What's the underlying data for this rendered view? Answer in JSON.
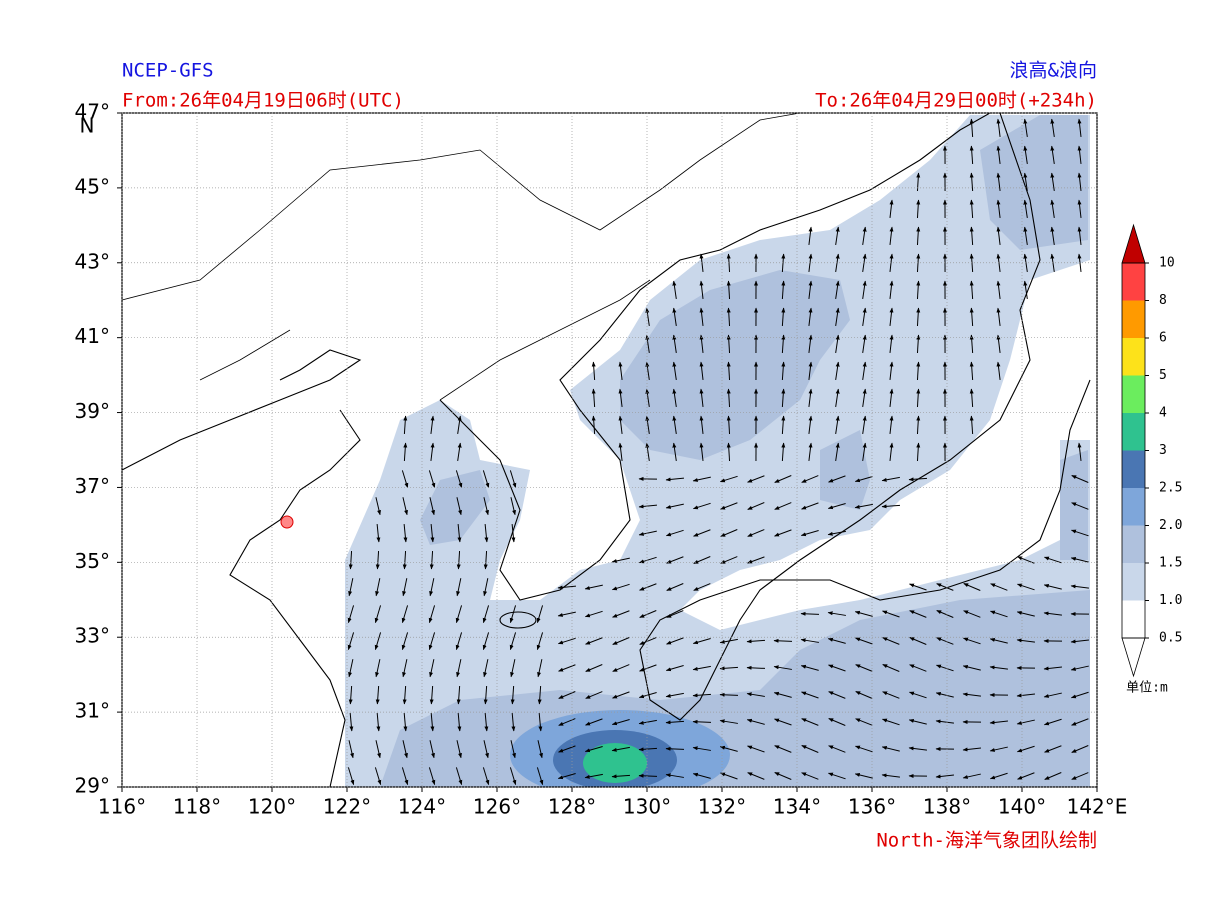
{
  "header": {
    "source": "NCEP-GFS",
    "product": "浪高&浪向",
    "from": "From:26年04月19日06时(UTC)",
    "to": "To:26年04月29日00时(+234h)"
  },
  "footer": {
    "credit": "North-海洋气象团队绘制"
  },
  "map": {
    "xlim": [
      116,
      142
    ],
    "ylim": [
      29,
      47
    ],
    "xticks": [
      {
        "value": 116,
        "label": "116°"
      },
      {
        "value": 118,
        "label": "118°"
      },
      {
        "value": 120,
        "label": "120°"
      },
      {
        "value": 122,
        "label": "122°"
      },
      {
        "value": 124,
        "label": "124°"
      },
      {
        "value": 126,
        "label": "126°"
      },
      {
        "value": 128,
        "label": "128°"
      },
      {
        "value": 130,
        "label": "130°"
      },
      {
        "value": 132,
        "label": "132°"
      },
      {
        "value": 134,
        "label": "134°"
      },
      {
        "value": 136,
        "label": "136°"
      },
      {
        "value": 138,
        "label": "138°"
      },
      {
        "value": 140,
        "label": "140°"
      },
      {
        "value": 142,
        "label": "142°E"
      }
    ],
    "yticks": [
      {
        "value": 29,
        "label": "29°"
      },
      {
        "value": 31,
        "label": "31°"
      },
      {
        "value": 33,
        "label": "33°"
      },
      {
        "value": 35,
        "label": "35°"
      },
      {
        "value": 37,
        "label": "37°"
      },
      {
        "value": 39,
        "label": "39°"
      },
      {
        "value": 41,
        "label": "41°"
      },
      {
        "value": 43,
        "label": "43°"
      },
      {
        "value": 45,
        "label": "45°"
      },
      {
        "value": 47,
        "label": "47°"
      }
    ],
    "lat_unit": "N",
    "grid": true
  },
  "colorbar": {
    "levels": [
      {
        "value": 0.5,
        "label": "0.5"
      },
      {
        "value": 1,
        "label": "1.0"
      },
      {
        "value": 1.5,
        "label": "1.5"
      },
      {
        "value": 2,
        "label": "2.0"
      },
      {
        "value": 2.5,
        "label": "2.5"
      },
      3,
      4,
      5,
      6,
      8,
      10
    ],
    "colors": [
      "#ffffff",
      "#c9d7ea",
      "#afc1dd",
      "#7ea6da",
      "#4a76b3",
      "#2fc28f",
      "#6bed5e",
      "#fde21a",
      "#ff9a00",
      "#ff4242"
    ],
    "over_color": "#c00000",
    "under_color": "#ffffff",
    "unit": "单位:m"
  }
}
